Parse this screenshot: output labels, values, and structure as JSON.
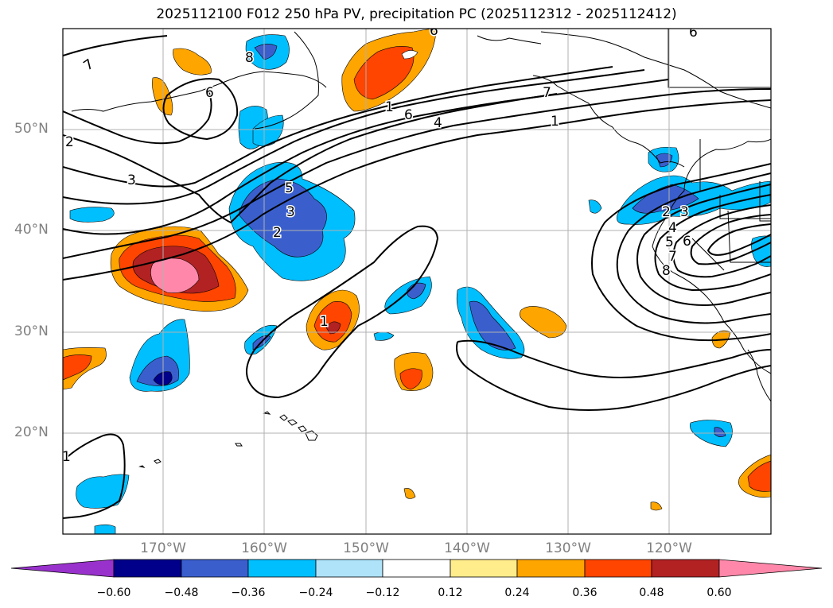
{
  "title": "2025112100 F012 250 hPa PV, precipitation PC (2025112312 - 2025112412)",
  "map": {
    "lat_labels": [
      "50°N",
      "40°N",
      "30°N",
      "20°N"
    ],
    "lon_labels": [
      "170°W",
      "160°W",
      "150°W",
      "140°W",
      "130°W",
      "120°W"
    ],
    "contour_labels": [
      "7",
      "6",
      "2",
      "3",
      "5",
      "3",
      "2",
      "1",
      "6",
      "4",
      "1",
      "7",
      "8",
      "1",
      "1",
      "2",
      "3",
      "4",
      "5",
      "6",
      "7",
      "8",
      "6",
      "6"
    ]
  },
  "colorbar": {
    "ticks": [
      "−0.60",
      "−0.48",
      "−0.36",
      "−0.24",
      "−0.12",
      "0.12",
      "0.24",
      "0.36",
      "0.48",
      "0.60"
    ],
    "colors": [
      "#9932cc",
      "#00008b",
      "#3a5fcd",
      "#00bfff",
      "#aee3fa",
      "#ffffff",
      "#ffec8b",
      "#ffa500",
      "#ff4500",
      "#b22222",
      "#ff88aa"
    ]
  }
}
